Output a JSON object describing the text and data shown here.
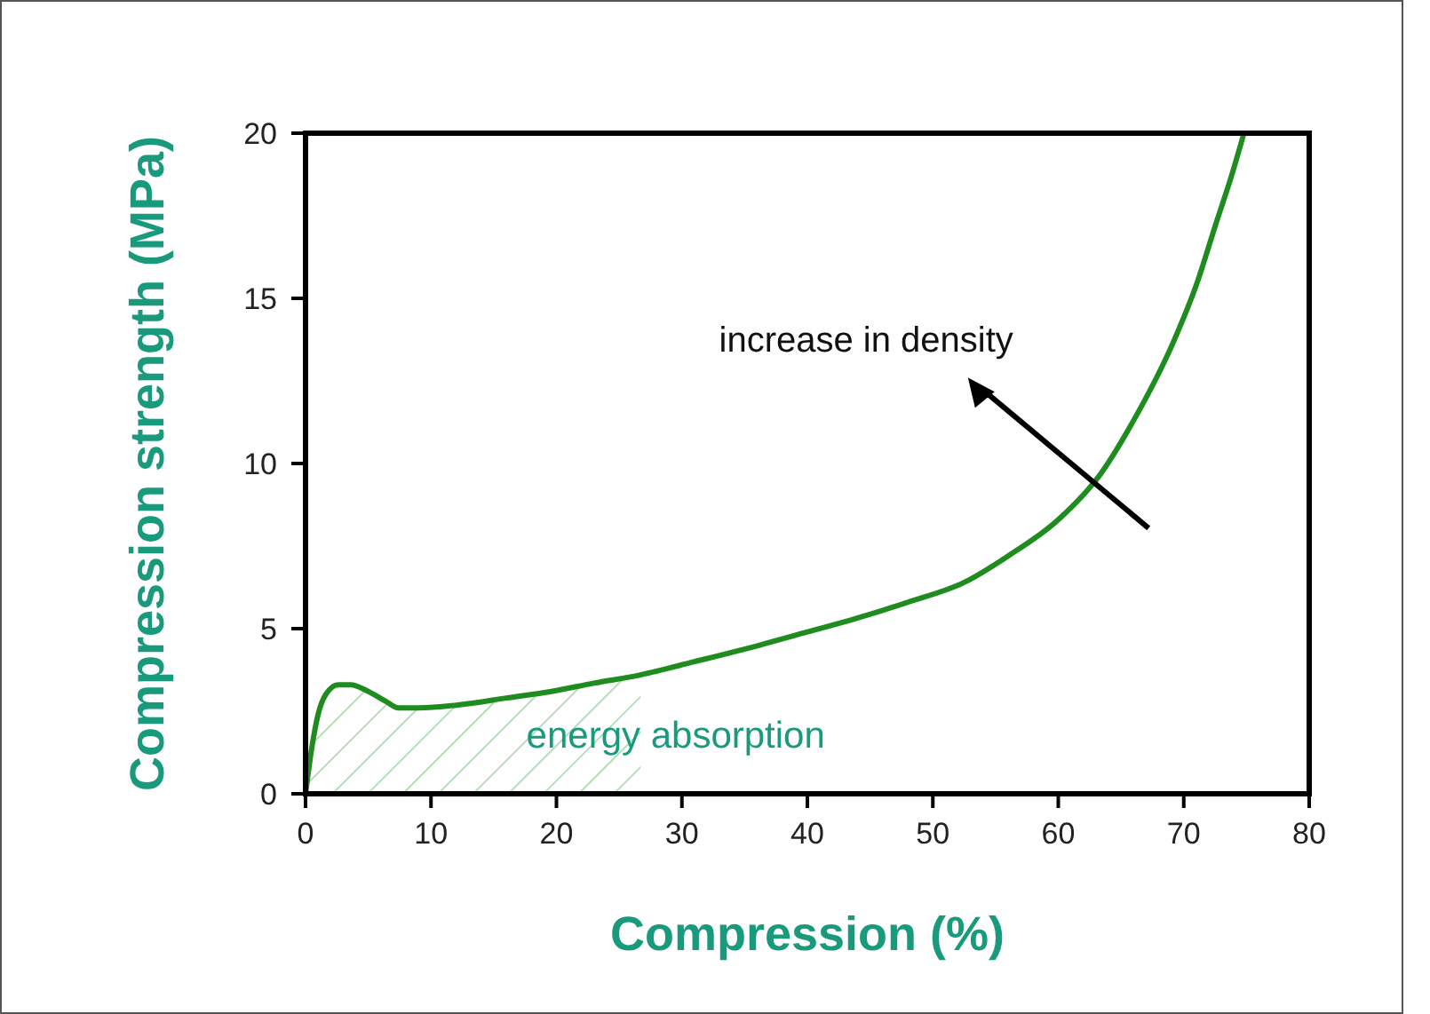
{
  "chart_data": {
    "type": "line",
    "xlabel": "Compression (%)",
    "ylabel": "Compression strength (MPa)",
    "xlim": [
      0,
      80
    ],
    "xticks": [
      0,
      10,
      20,
      30,
      40,
      50,
      60,
      70,
      80
    ],
    "ylim": [
      0,
      20
    ],
    "yticks": [
      0,
      5,
      10,
      15,
      20
    ],
    "grid": false,
    "marker": "none",
    "line_style": "solid",
    "series": [
      {
        "color": "#1e8c1e",
        "x": [
          0,
          0.5,
          1,
          1.6,
          2.6,
          3.6,
          5,
          6.4,
          7.4,
          9,
          12.4,
          16,
          19.6,
          23,
          26.7,
          31,
          36.2,
          40,
          43.8,
          48,
          52.5,
          56,
          60,
          63.4,
          66,
          69.2,
          71,
          72.6,
          73.8,
          74.8
        ],
        "values": [
          0,
          1.4,
          2.4,
          3.0,
          3.3,
          3.3,
          3.1,
          2.8,
          2.6,
          2.6,
          2.7,
          2.9,
          3.1,
          3.35,
          3.6,
          4.0,
          4.5,
          4.9,
          5.3,
          5.8,
          6.4,
          7.2,
          8.3,
          9.7,
          11.3,
          13.7,
          15.4,
          17.3,
          18.7,
          20
        ]
      }
    ],
    "annotations": [
      "increase in density",
      "energy absorption"
    ]
  }
}
